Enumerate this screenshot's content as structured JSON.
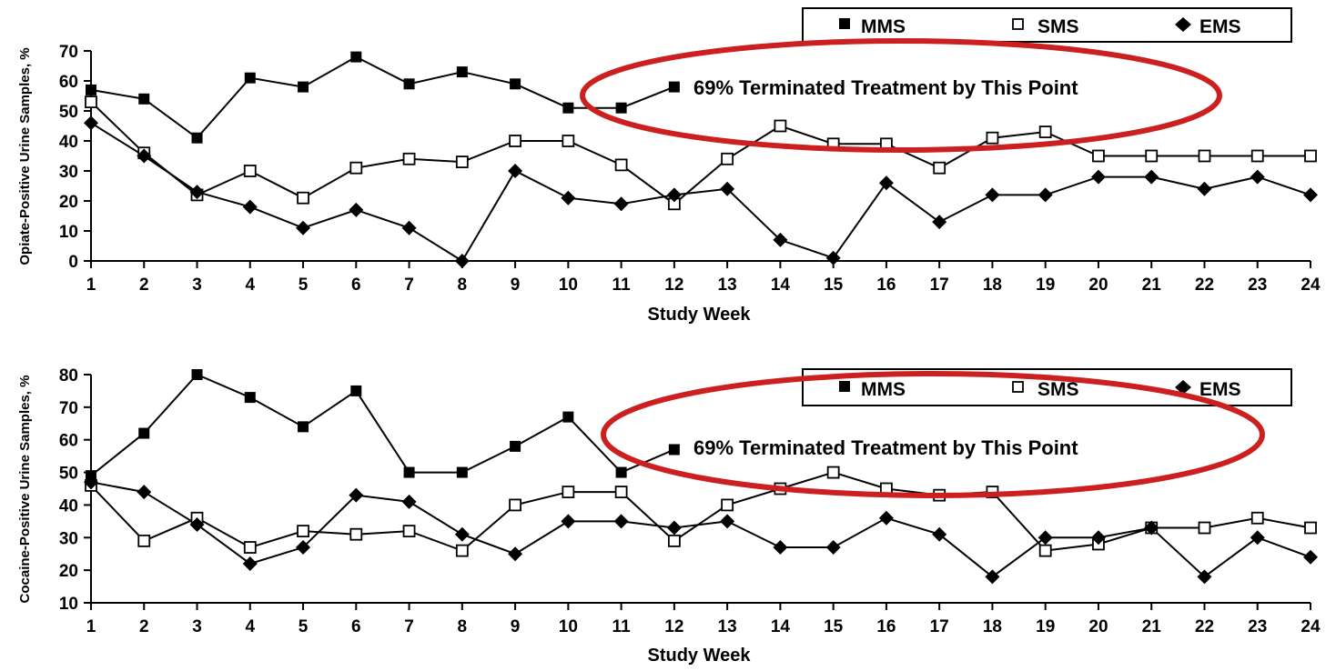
{
  "chart_data": [
    {
      "type": "line",
      "ylabel": "Opiate-Positive Urine Samples, %",
      "xlabel": "Study Week",
      "x": [
        1,
        2,
        3,
        4,
        5,
        6,
        7,
        8,
        9,
        10,
        11,
        12,
        13,
        14,
        15,
        16,
        17,
        18,
        19,
        20,
        21,
        22,
        23,
        24
      ],
      "xlim": [
        1,
        24
      ],
      "ylim": [
        0,
        70
      ],
      "yticks": [
        0,
        10,
        20,
        30,
        40,
        50,
        60,
        70
      ],
      "legend_position": "top-right",
      "series": [
        {
          "name": "MMS",
          "marker": "filled-square",
          "values": [
            57,
            54,
            41,
            61,
            58,
            68,
            59,
            63,
            59,
            51,
            51,
            58,
            null,
            null,
            null,
            null,
            null,
            null,
            null,
            null,
            null,
            null,
            null,
            null
          ]
        },
        {
          "name": "SMS",
          "marker": "open-square",
          "values": [
            53,
            36,
            22,
            30,
            21,
            31,
            34,
            33,
            40,
            40,
            32,
            19,
            34,
            45,
            39,
            39,
            31,
            41,
            43,
            35,
            35,
            35,
            35,
            35
          ]
        },
        {
          "name": "EMS",
          "marker": "filled-diamond",
          "values": [
            46,
            35,
            23,
            18,
            11,
            17,
            11,
            0,
            30,
            21,
            19,
            22,
            24,
            7,
            1,
            26,
            13,
            22,
            22,
            28,
            28,
            24,
            28,
            22
          ]
        }
      ],
      "annotation": "69% Terminated Treatment by This Point"
    },
    {
      "type": "line",
      "ylabel": "Cocaine-Positive Urine Samples, %",
      "xlabel": "Study Week",
      "x": [
        1,
        2,
        3,
        4,
        5,
        6,
        7,
        8,
        9,
        10,
        11,
        12,
        13,
        14,
        15,
        16,
        17,
        18,
        19,
        20,
        21,
        22,
        23,
        24
      ],
      "xlim": [
        1,
        24
      ],
      "ylim": [
        10,
        80
      ],
      "yticks": [
        10,
        20,
        30,
        40,
        50,
        60,
        70,
        80
      ],
      "legend_position": "top-right",
      "series": [
        {
          "name": "MMS",
          "marker": "filled-square",
          "values": [
            49,
            62,
            80,
            73,
            64,
            75,
            50,
            50,
            58,
            67,
            50,
            57,
            null,
            null,
            null,
            null,
            null,
            null,
            null,
            null,
            null,
            null,
            null,
            null
          ]
        },
        {
          "name": "SMS",
          "marker": "open-square",
          "values": [
            46,
            29,
            36,
            27,
            32,
            31,
            32,
            26,
            40,
            44,
            44,
            29,
            40,
            45,
            50,
            45,
            43,
            44,
            26,
            28,
            33,
            33,
            36,
            33
          ]
        },
        {
          "name": "EMS",
          "marker": "filled-diamond",
          "values": [
            47,
            44,
            34,
            22,
            27,
            43,
            41,
            31,
            25,
            35,
            35,
            33,
            35,
            27,
            27,
            36,
            31,
            18,
            30,
            30,
            33,
            18,
            30,
            24
          ]
        }
      ],
      "annotation": "69% Terminated Treatment by This Point"
    }
  ],
  "colors": {
    "ink": "#000000",
    "highlight_ellipse": "#cc1f1f",
    "background": "#ffffff"
  }
}
